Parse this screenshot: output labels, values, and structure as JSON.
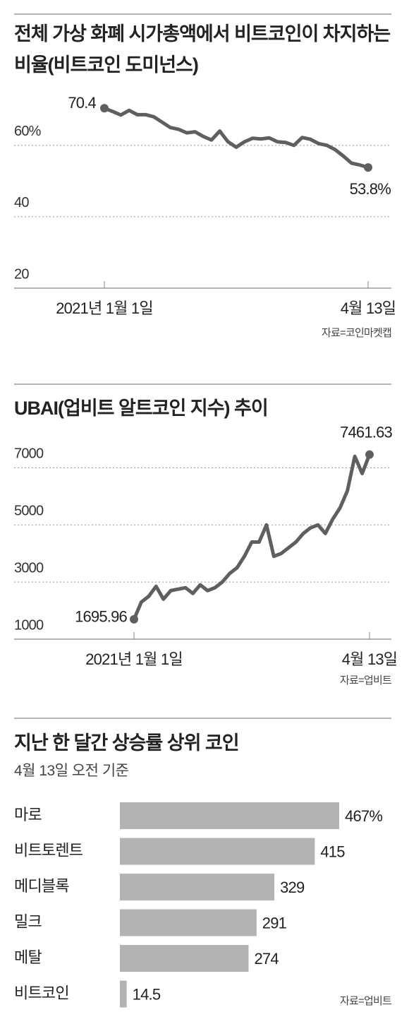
{
  "chart_data": [
    {
      "type": "line",
      "title": "전체 가상 화폐 시가총액에서 비트코인이 차지하는 비율(비트코인 도미넌스)",
      "source": "자료=코인마켓캡",
      "categories": [
        "2021년 1월 1일",
        null,
        null,
        null,
        null,
        null,
        null,
        null,
        null,
        null,
        null,
        null,
        null,
        null,
        null,
        null,
        null,
        null,
        null,
        null,
        null,
        null,
        null,
        null,
        null,
        null,
        null,
        null,
        null,
        null,
        null,
        null,
        "4월 13일"
      ],
      "series": [
        {
          "color": "#5f5f5f",
          "values": [
            70.4,
            69.5,
            68.5,
            69.8,
            68.6,
            68.6,
            68,
            66.5,
            65,
            64.5,
            63.5,
            63.8,
            62.5,
            61.5,
            64,
            61,
            59.5,
            61,
            62,
            61.8,
            62.1,
            61,
            60.8,
            60,
            62.2,
            61.7,
            60.5,
            60,
            58.8,
            57,
            55,
            54.5,
            53.8
          ],
          "value_labels": [
            "70.4",
            null,
            null,
            null,
            null,
            null,
            null,
            null,
            null,
            null,
            null,
            null,
            null,
            null,
            null,
            null,
            null,
            null,
            null,
            null,
            null,
            null,
            null,
            null,
            null,
            null,
            null,
            null,
            null,
            null,
            null,
            null,
            "53.8%"
          ]
        }
      ],
      "ylim": [
        20,
        75
      ],
      "yticks": [
        {
          "value": 60,
          "label": "60%"
        },
        40,
        20
      ],
      "grid": true
    },
    {
      "type": "line",
      "title": "UBAI(업비트 알트코인 지수) 추이",
      "source": "자료=업비트",
      "categories": [
        "2021년 1월 1일",
        null,
        null,
        null,
        null,
        null,
        null,
        null,
        null,
        null,
        null,
        null,
        null,
        null,
        null,
        null,
        null,
        null,
        null,
        null,
        null,
        null,
        null,
        null,
        null,
        null,
        null,
        null,
        null,
        null,
        null,
        null,
        "4월 13일"
      ],
      "series": [
        {
          "color": "#5f5f5f",
          "values": [
            1695.96,
            2300,
            2500,
            2850,
            2400,
            2700,
            2750,
            2800,
            2600,
            2900,
            2700,
            2800,
            3000,
            3300,
            3500,
            3900,
            4400,
            4400,
            5000,
            3900,
            4000,
            4200,
            4400,
            4700,
            4900,
            5000,
            4700,
            5200,
            5600,
            6200,
            7400,
            6800,
            7461.63
          ],
          "value_labels": [
            "1695.96",
            null,
            null,
            null,
            null,
            null,
            null,
            null,
            null,
            null,
            null,
            null,
            null,
            null,
            null,
            null,
            null,
            null,
            null,
            null,
            null,
            null,
            null,
            null,
            null,
            null,
            null,
            null,
            null,
            null,
            null,
            null,
            "7461.63"
          ]
        }
      ],
      "ylim": [
        1000,
        7800
      ],
      "yticks": [
        7000,
        5000,
        3000,
        1000
      ],
      "grid": true
    },
    {
      "type": "hbar",
      "title": "지난 한 달간 상승률 상위 코인",
      "subtitle": "4월 13일 오전 기준",
      "source": "자료=업비트",
      "categories": [
        "마로",
        "비트토렌트",
        "메디블록",
        "밀크",
        "메탈",
        "비트코인"
      ],
      "values": [
        467,
        415,
        329,
        291,
        274,
        14.5
      ],
      "value_labels": [
        "467%",
        "415",
        "329",
        "291",
        "274",
        "14.5"
      ],
      "color": "#b3b3b3",
      "xlim": [
        0,
        500
      ]
    }
  ]
}
